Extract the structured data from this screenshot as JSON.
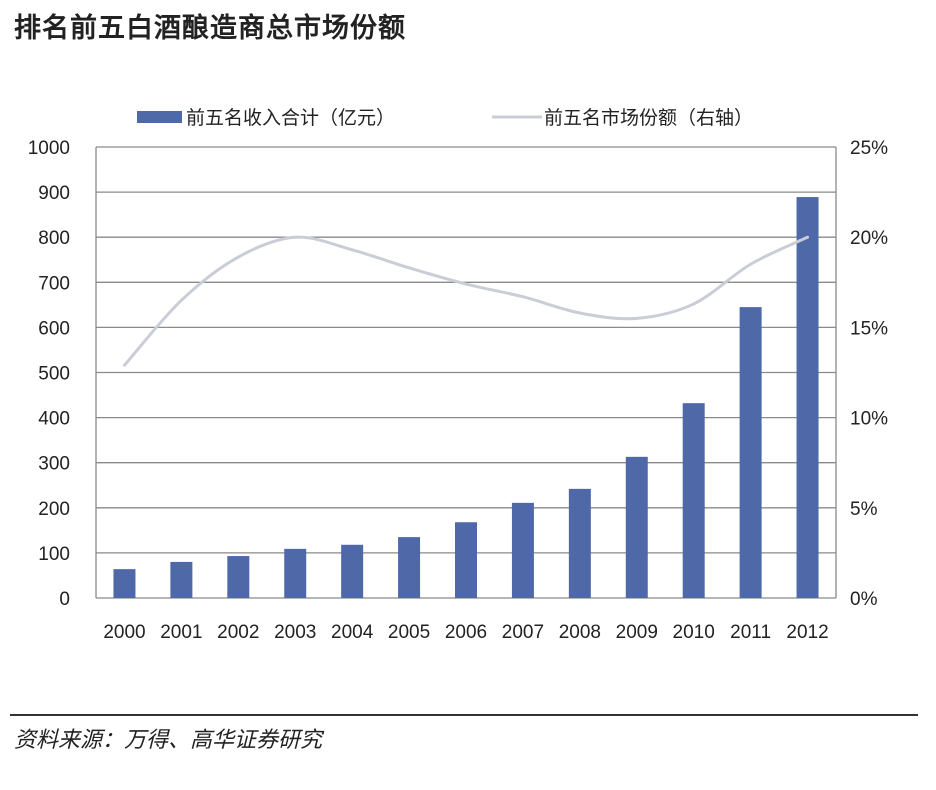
{
  "chart_data": {
    "type": "bar",
    "title": "排名前五白酒酿造商总市场份额",
    "source": "资料来源：万得、高华证券研究",
    "categories": [
      "2000",
      "2001",
      "2002",
      "2003",
      "2004",
      "2005",
      "2006",
      "2007",
      "2008",
      "2009",
      "2010",
      "2011",
      "2012"
    ],
    "series": [
      {
        "name": "前五名收入合计（亿元）",
        "type": "bar",
        "axis": "left",
        "color": "#4f69a8",
        "values": [
          64,
          80,
          93,
          109,
          118,
          135,
          168,
          211,
          242,
          313,
          432,
          645,
          889
        ]
      },
      {
        "name": "前五名市场份额（右轴）",
        "type": "line",
        "axis": "right",
        "color": "#c9cdd6",
        "values": [
          12.9,
          16.5,
          18.9,
          20.0,
          19.3,
          18.3,
          17.4,
          16.7,
          15.8,
          15.5,
          16.3,
          18.5,
          20.0
        ]
      }
    ],
    "ylim": [
      0,
      1000
    ],
    "yticks": [
      "0",
      "100",
      "200",
      "300",
      "400",
      "500",
      "600",
      "700",
      "800",
      "900",
      "1000"
    ],
    "y2lim": [
      0,
      25
    ],
    "y2ticks": [
      "0%",
      "5%",
      "10%",
      "15%",
      "20%",
      "25%"
    ],
    "grid": true,
    "legend": "top"
  }
}
